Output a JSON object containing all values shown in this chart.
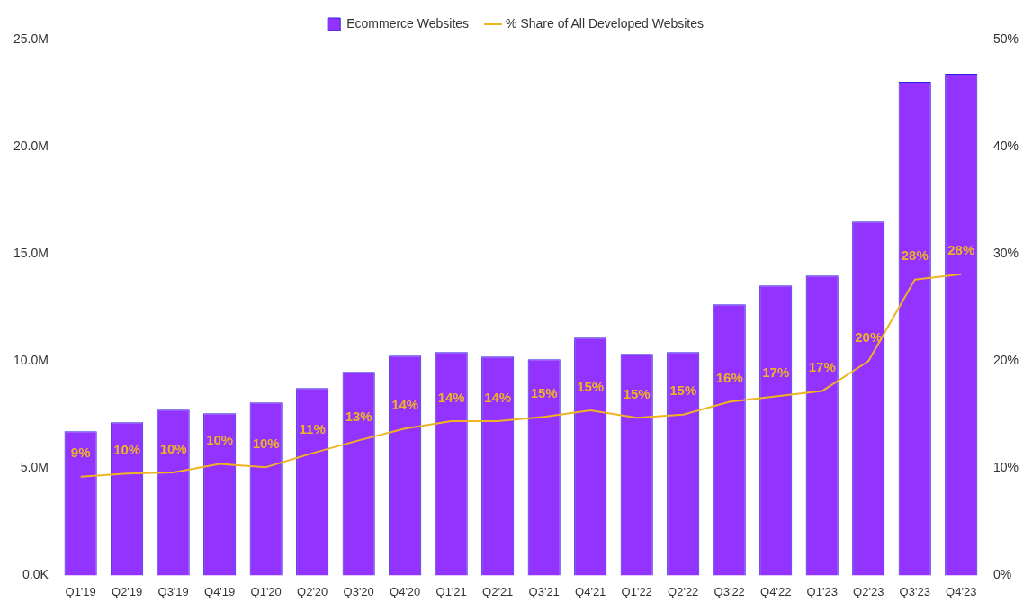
{
  "chart_data": {
    "type": "bar",
    "categories": [
      "Q1'19",
      "Q2'19",
      "Q3'19",
      "Q4'19",
      "Q1'20",
      "Q2'20",
      "Q3'20",
      "Q4'20",
      "Q1'21",
      "Q2'21",
      "Q3'21",
      "Q4'21",
      "Q1'22",
      "Q2'22",
      "Q3'22",
      "Q4'22",
      "Q1'23",
      "Q2'23",
      "Q3'23",
      "Q4'23"
    ],
    "series": [
      {
        "name": "Ecommerce Websites",
        "color": "#9333ff",
        "values": [
          6.72,
          7.14,
          7.73,
          7.56,
          8.07,
          8.74,
          9.5,
          10.25,
          10.42,
          10.21,
          10.08,
          11.09,
          10.34,
          10.42,
          12.65,
          13.53,
          13.99,
          16.51,
          23.03,
          23.4
        ]
      },
      {
        "name": "% Share of All Developed Websites",
        "type": "line",
        "axis": "y2",
        "color": "#f0b323",
        "values": [
          9.2,
          9.5,
          9.6,
          10.4,
          10.1,
          11.4,
          12.6,
          13.7,
          14.4,
          14.4,
          14.8,
          15.4,
          14.7,
          15.0,
          16.2,
          16.7,
          17.2,
          20.0,
          27.6,
          28.1
        ],
        "value_labels": [
          "9%",
          "10%",
          "10%",
          "10%",
          "10%",
          "11%",
          "13%",
          "14%",
          "14%",
          "14%",
          "15%",
          "15%",
          "15%",
          "15%",
          "16%",
          "17%",
          "17%",
          "20%",
          "28%",
          "28%"
        ]
      }
    ],
    "ylim": [
      0,
      25
    ],
    "yticks": [
      {
        "value": 0,
        "label": "0.0K"
      },
      {
        "value": 5,
        "label": "5.0M"
      },
      {
        "value": 10,
        "label": "10.0M"
      },
      {
        "value": 15,
        "label": "15.0M"
      },
      {
        "value": 20,
        "label": "20.0M"
      },
      {
        "value": 25,
        "label": "25.0M"
      }
    ],
    "y2lim": [
      0,
      50
    ],
    "y2ticks": [
      {
        "value": 0,
        "label": "0%"
      },
      {
        "value": 10,
        "label": "10%"
      },
      {
        "value": 20,
        "label": "20%"
      },
      {
        "value": 30,
        "label": "30%"
      },
      {
        "value": 40,
        "label": "40%"
      },
      {
        "value": 50,
        "label": "50%"
      }
    ],
    "legend": "top",
    "grid": false,
    "marker": "none"
  }
}
